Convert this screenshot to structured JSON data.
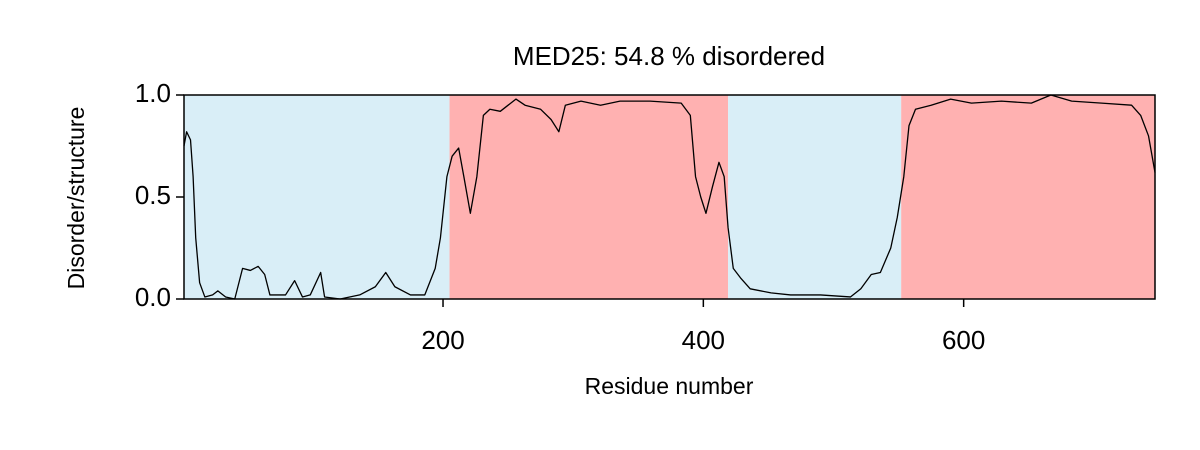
{
  "chart_data": {
    "type": "line",
    "title": "MED25: 54.8 % disordered",
    "xlabel": "Residue number",
    "ylabel": "Disorder/structure",
    "xlim": [
      1,
      747
    ],
    "ylim": [
      0,
      1
    ],
    "xticks": [
      200,
      400,
      600
    ],
    "yticks": [
      {
        "value": 0,
        "label": "0.0"
      },
      {
        "value": 0.5,
        "label": "0.5"
      },
      {
        "value": 1,
        "label": "1.0"
      }
    ],
    "color": "#000000",
    "regions": [
      {
        "start": 1,
        "end": 205,
        "color": "#d9eef7"
      },
      {
        "start": 205,
        "end": 419,
        "color": "#ffb1b1"
      },
      {
        "start": 419,
        "end": 552,
        "color": "#d9eef7"
      },
      {
        "start": 552,
        "end": 747,
        "color": "#ffb1b1"
      }
    ],
    "x": [
      1,
      3,
      6,
      8,
      10,
      13,
      17,
      23,
      27,
      33,
      40,
      46,
      52,
      58,
      63,
      67,
      79,
      86,
      92,
      98,
      106,
      109,
      121,
      136,
      148,
      156,
      163,
      175,
      186,
      194,
      198,
      203,
      207,
      212,
      216,
      221,
      226,
      231,
      236,
      244,
      256,
      263,
      275,
      283,
      289,
      294,
      306,
      321,
      336,
      359,
      383,
      390,
      394,
      398,
      402,
      407,
      412,
      416,
      419,
      423,
      429,
      436,
      452,
      467,
      490,
      513,
      521,
      529,
      536,
      544,
      549,
      554,
      558,
      563,
      575,
      590,
      606,
      629,
      652,
      667,
      683,
      706,
      729,
      736,
      742,
      747
    ],
    "values": [
      0.75,
      0.82,
      0.78,
      0.6,
      0.3,
      0.08,
      0.01,
      0.02,
      0.04,
      0.01,
      0.0,
      0.15,
      0.14,
      0.16,
      0.12,
      0.02,
      0.02,
      0.09,
      0.01,
      0.02,
      0.13,
      0.01,
      0.0,
      0.02,
      0.06,
      0.13,
      0.06,
      0.02,
      0.02,
      0.15,
      0.3,
      0.6,
      0.7,
      0.74,
      0.6,
      0.42,
      0.6,
      0.9,
      0.93,
      0.92,
      0.98,
      0.95,
      0.93,
      0.88,
      0.82,
      0.95,
      0.97,
      0.95,
      0.97,
      0.97,
      0.96,
      0.9,
      0.6,
      0.5,
      0.42,
      0.55,
      0.67,
      0.6,
      0.35,
      0.15,
      0.1,
      0.05,
      0.03,
      0.02,
      0.02,
      0.01,
      0.05,
      0.12,
      0.13,
      0.25,
      0.4,
      0.6,
      0.85,
      0.93,
      0.95,
      0.98,
      0.96,
      0.97,
      0.96,
      1.0,
      0.97,
      0.96,
      0.95,
      0.9,
      0.8,
      0.62
    ]
  }
}
